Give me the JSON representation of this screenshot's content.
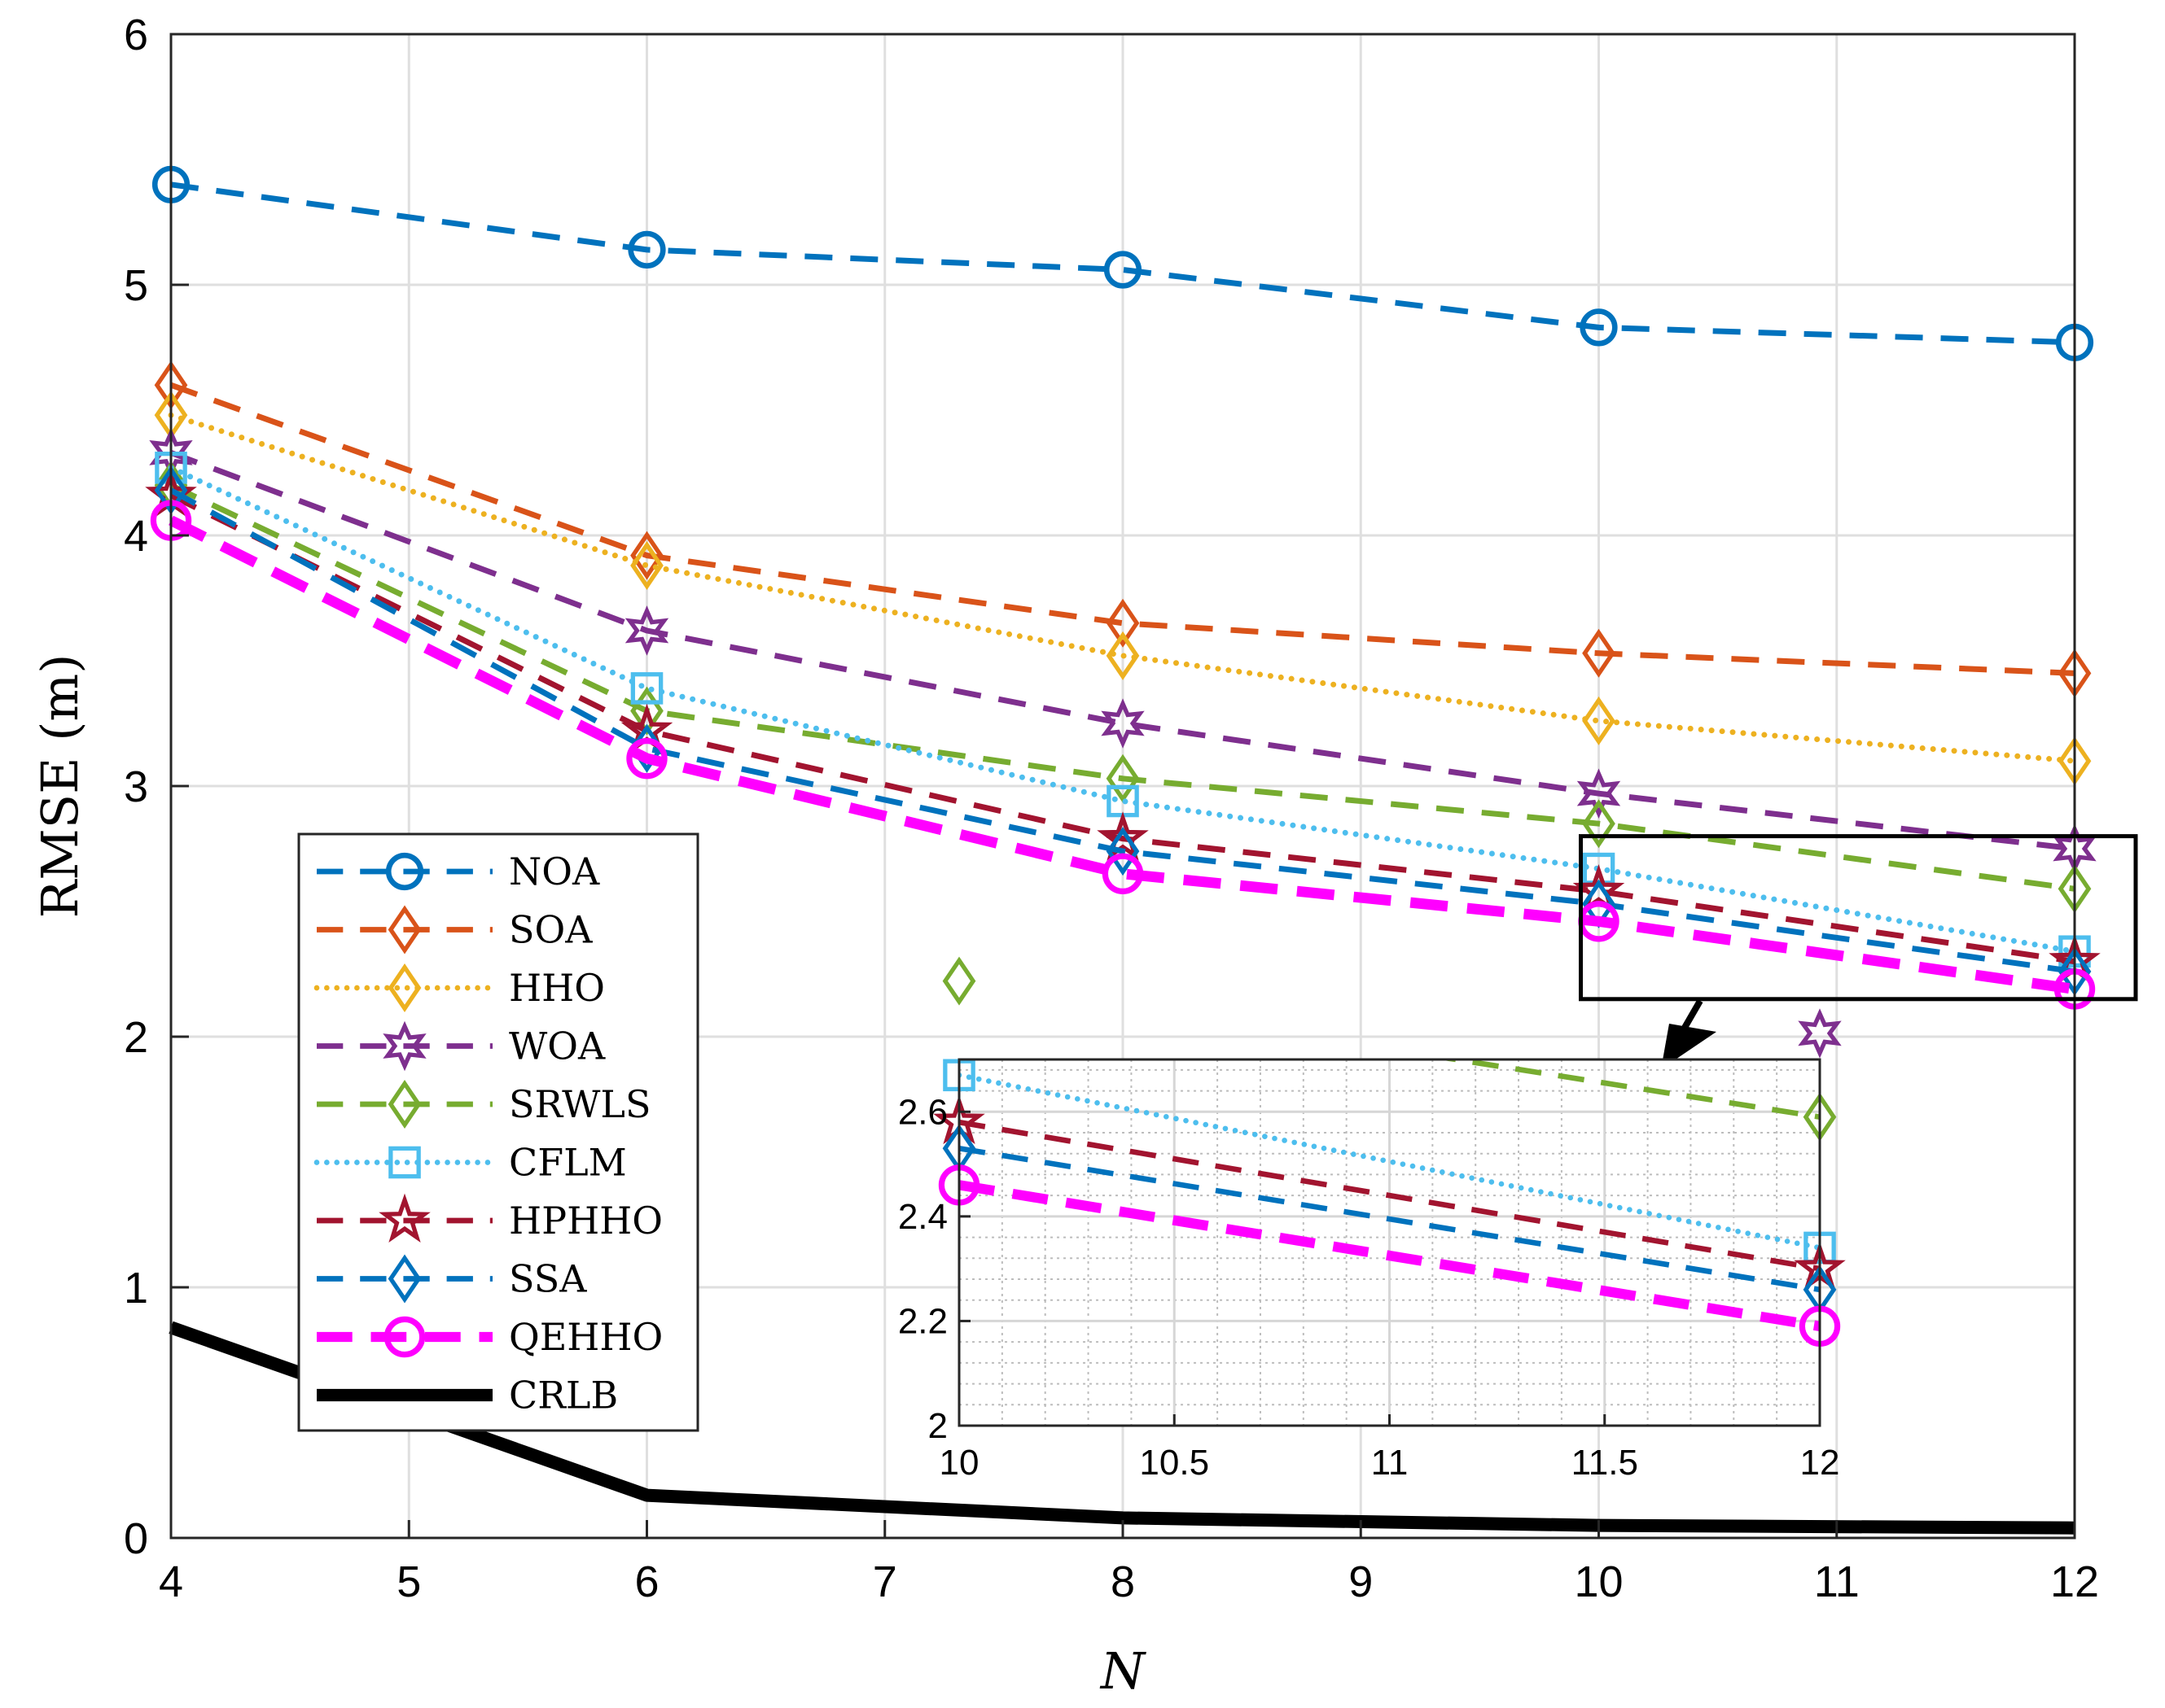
{
  "chart_data": {
    "type": "line",
    "xlabel": "N",
    "ylabel": "RMSE (m)",
    "xlim": [
      4,
      12
    ],
    "ylim": [
      0,
      6
    ],
    "xticks": [
      "4",
      "5",
      "6",
      "7",
      "8",
      "9",
      "10",
      "11",
      "12"
    ],
    "yticks": [
      "0",
      "1",
      "2",
      "3",
      "4",
      "5",
      "6"
    ],
    "grid": true,
    "legend_position": "lower-left",
    "x": [
      4,
      6,
      8,
      10,
      12
    ],
    "series": [
      {
        "name": "NOA",
        "values": [
          5.4,
          5.14,
          5.06,
          4.83,
          4.77
        ],
        "color": "#0072BD",
        "dash": "long-dash",
        "marker": "circle"
      },
      {
        "name": "SOA",
        "values": [
          4.6,
          3.92,
          3.65,
          3.53,
          3.45
        ],
        "color": "#D95319",
        "dash": "long-dash",
        "marker": "diamond"
      },
      {
        "name": "HHO",
        "values": [
          4.48,
          3.88,
          3.52,
          3.26,
          3.1
        ],
        "color": "#EDB120",
        "dash": "dotted",
        "marker": "diamond"
      },
      {
        "name": "WOA",
        "values": [
          4.33,
          3.62,
          3.25,
          2.97,
          2.75
        ],
        "color": "#7E2F8E",
        "dash": "long-dash",
        "marker": "hexagram"
      },
      {
        "name": "SRWLS",
        "values": [
          4.2,
          3.3,
          3.03,
          2.85,
          2.59
        ],
        "color": "#77AC30",
        "dash": "long-dash",
        "marker": "diamond"
      },
      {
        "name": "CFLM",
        "values": [
          4.27,
          3.39,
          2.94,
          2.67,
          2.34
        ],
        "color": "#4DBEEE",
        "dash": "dotted",
        "marker": "square"
      },
      {
        "name": "HPHHO",
        "values": [
          4.16,
          3.22,
          2.79,
          2.58,
          2.3
        ],
        "color": "#A2142F",
        "dash": "long-dash",
        "marker": "pentagram"
      },
      {
        "name": "SSA",
        "values": [
          4.18,
          3.15,
          2.74,
          2.53,
          2.26
        ],
        "color": "#0072BD",
        "dash": "long-dash",
        "marker": "diamond"
      },
      {
        "name": "QEHHO",
        "values": [
          4.06,
          3.11,
          2.65,
          2.46,
          2.19
        ],
        "color": "#FF00FF",
        "dash": "thick-long-dash",
        "marker": "circle"
      },
      {
        "name": "CRLB",
        "values": [
          0.84,
          0.17,
          0.08,
          0.05,
          0.04
        ],
        "color": "#000000",
        "dash": "solid",
        "marker": "none"
      }
    ],
    "inset": {
      "xlim": [
        10,
        12
      ],
      "ylim": [
        2,
        2.7
      ],
      "xticks": [
        "10",
        "10.5",
        "11",
        "11.5",
        "12"
      ],
      "yticks": [
        "2",
        "2.2",
        "2.4",
        "2.6"
      ],
      "grid": "minor dotted"
    }
  }
}
